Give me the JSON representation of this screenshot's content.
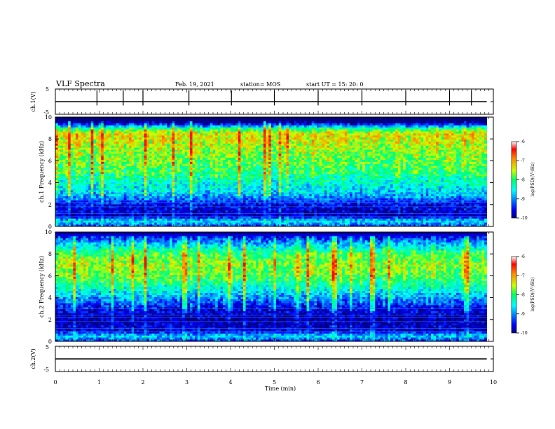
{
  "header": {
    "title": "VLF Spectra",
    "date": "Feb. 19, 2021",
    "station": "station= MOS",
    "start_ut": "start  UT =   15: 20: 0"
  },
  "chart_data": [
    {
      "type": "line",
      "name": "ch.1 waveform",
      "ylabel": "ch.1(V)",
      "ylim": [
        -5,
        5
      ],
      "y_ticks": [
        "5",
        "-5"
      ],
      "x": [
        0,
        9.85
      ],
      "y": [
        0,
        0
      ],
      "spike_times_min": [
        0.95,
        1.55,
        2.0,
        3.05,
        4.02,
        5.0,
        6.0,
        7.0,
        8.0,
        9.0,
        9.5
      ]
    },
    {
      "type": "heatmap",
      "name": "ch.1 spectrogram",
      "ylabel": "ch.1 Frequency (kHz)",
      "ylim": [
        0,
        10
      ],
      "y_ticks": [
        "0",
        "2",
        "4",
        "6",
        "8",
        "10"
      ],
      "xlim": [
        0,
        10
      ],
      "data_extent_min": 9.85,
      "profile_freq_khz": [
        0,
        0.5,
        1,
        2,
        3,
        4,
        5,
        6,
        7,
        8,
        8.5,
        9,
        9.5,
        10
      ],
      "profile_log_psd": [
        -9.3,
        -8.6,
        -9.8,
        -9.6,
        -8.7,
        -8.4,
        -8.0,
        -7.8,
        -7.6,
        -7.4,
        -7.3,
        -8.2,
        -10,
        -10
      ],
      "colorbar": {
        "min": -10,
        "max": -6,
        "ticks": [
          "-6",
          "-7",
          "-8",
          "-9",
          "-10"
        ],
        "label": "log(PSD)(V²/Hz)"
      }
    },
    {
      "type": "heatmap",
      "name": "ch.2 spectrogram",
      "ylabel": "ch.2 Frequency (kHz)",
      "ylim": [
        0,
        10
      ],
      "y_ticks": [
        "0",
        "2",
        "4",
        "6",
        "8",
        "10"
      ],
      "xlim": [
        0,
        10
      ],
      "data_extent_min": 9.85,
      "profile_freq_khz": [
        0,
        0.5,
        1,
        2,
        3,
        4,
        5,
        6,
        7,
        8,
        9,
        9.5,
        10
      ],
      "profile_log_psd": [
        -9.4,
        -8.7,
        -9.7,
        -9.9,
        -9.6,
        -8.9,
        -8.3,
        -7.8,
        -7.6,
        -7.9,
        -8.8,
        -9.4,
        -10
      ],
      "colorbar": {
        "min": -10,
        "max": -6,
        "ticks": [
          "-6",
          "-7",
          "-8",
          "-9",
          "-10"
        ],
        "label": "log(PSD)(V²/Hz)"
      }
    },
    {
      "type": "line",
      "name": "ch.2 waveform",
      "ylabel": "ch.2(V)",
      "ylim": [
        -5,
        5
      ],
      "y_ticks": [
        "5",
        "-5"
      ],
      "x": [
        0,
        9.85
      ],
      "y": [
        0,
        0
      ]
    }
  ],
  "xaxis": {
    "label": "Time  (min)",
    "range": [
      0,
      10
    ],
    "ticks": [
      "0",
      "1",
      "2",
      "3",
      "4",
      "5",
      "6",
      "7",
      "8",
      "9",
      "10"
    ]
  }
}
